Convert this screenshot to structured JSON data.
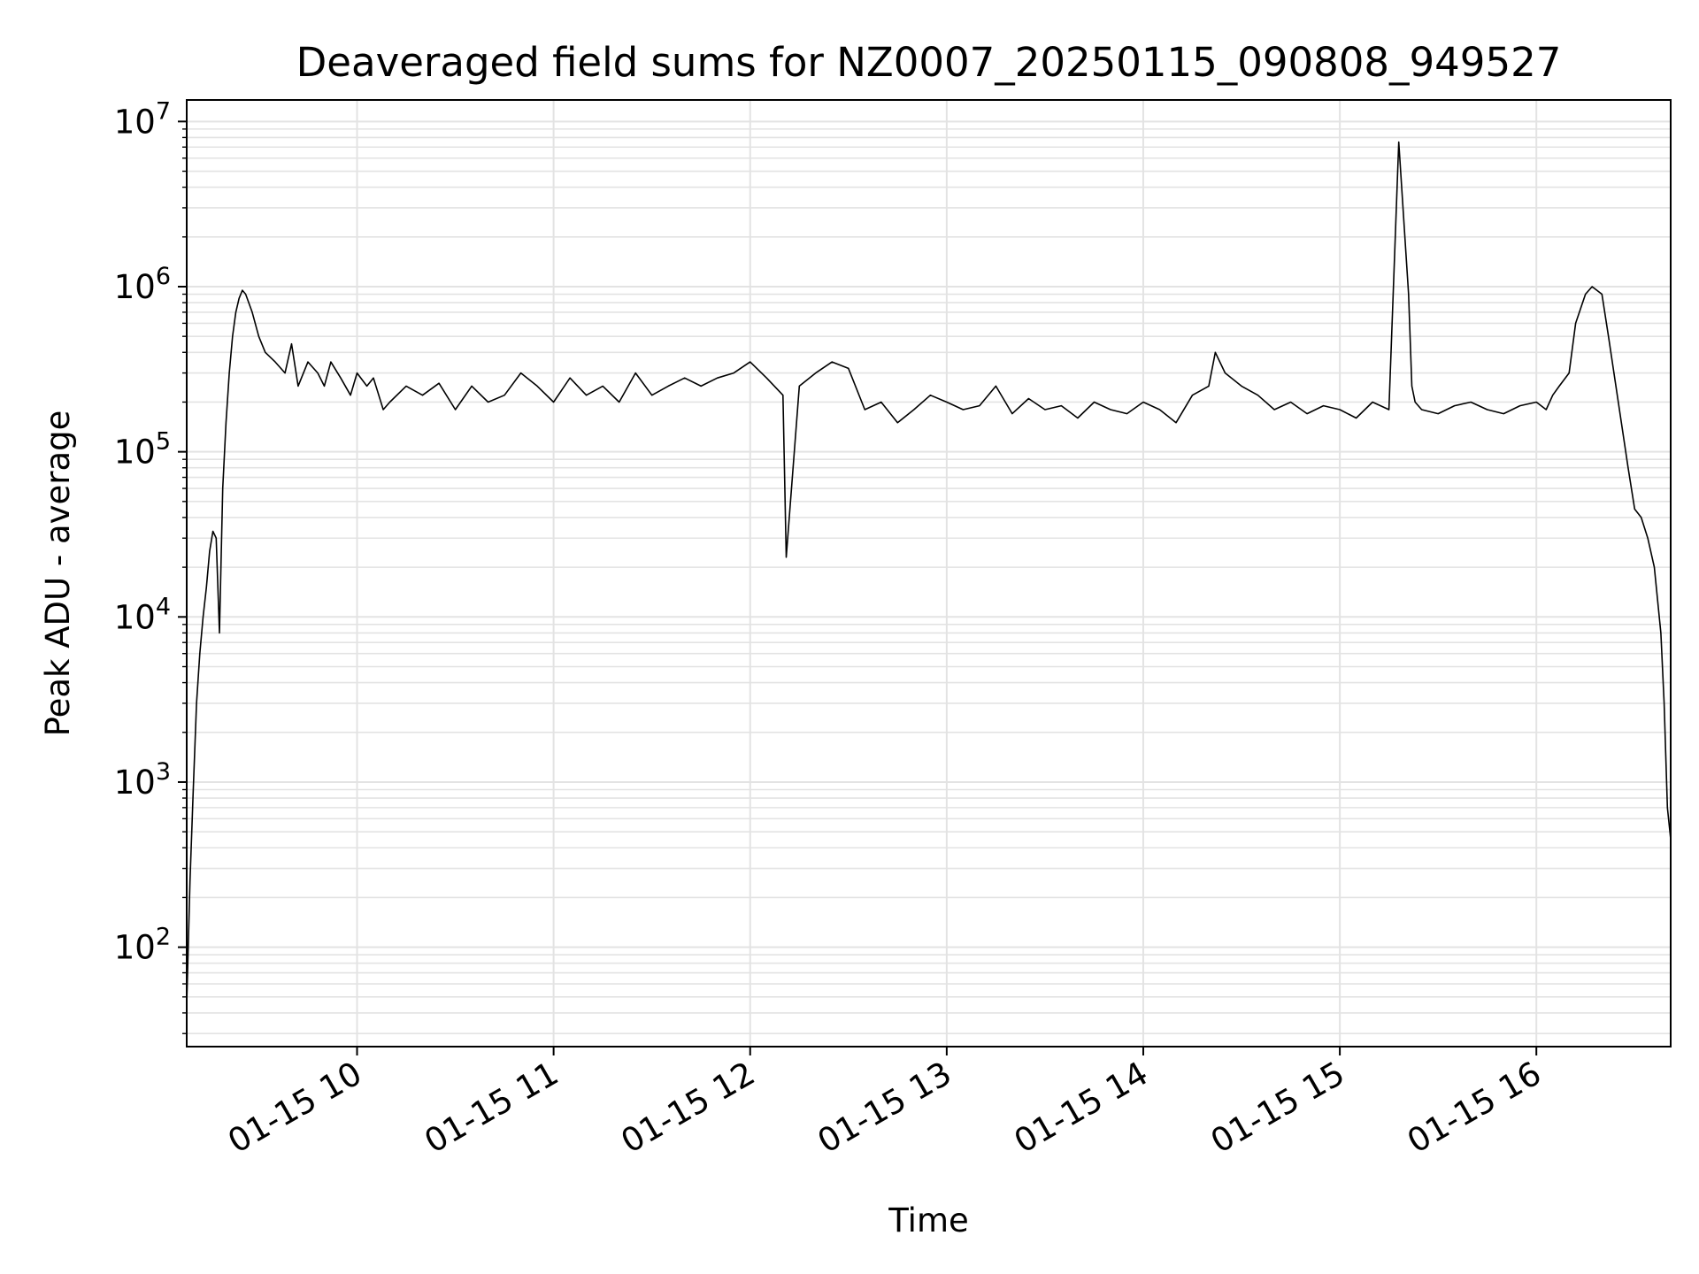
{
  "chart_data": {
    "type": "line",
    "title": "Deaveraged field sums for NZ0007_20250115_090808_949527",
    "xlabel": "Time",
    "ylabel": "Peak ADU - average",
    "y_scale": "log",
    "ylim": [
      25,
      13500000
    ],
    "xlim": [
      "2025-01-15 09:08",
      "2025-01-15 16:41"
    ],
    "x_tick_values": [
      "2025-01-15 10:00",
      "2025-01-15 11:00",
      "2025-01-15 12:00",
      "2025-01-15 13:00",
      "2025-01-15 14:00",
      "2025-01-15 15:00",
      "2025-01-15 16:00"
    ],
    "x_tick_labels": [
      "01-15 10",
      "01-15 11",
      "01-15 12",
      "01-15 13",
      "01-15 14",
      "01-15 15",
      "01-15 16"
    ],
    "y_tick_values": [
      100,
      1000,
      10000,
      100000,
      1000000,
      10000000
    ],
    "y_tick_exponents": [
      "2",
      "3",
      "4",
      "5",
      "6",
      "7"
    ],
    "y_tick_base": "10",
    "grid": true,
    "line_color": "#000000",
    "series": [
      {
        "x": [
          "09:08",
          "09:09",
          "09:10",
          "09:11",
          "09:12",
          "09:13",
          "09:14",
          "09:15",
          "09:16",
          "09:17",
          "09:18",
          "09:19",
          "09:20",
          "09:21",
          "09:22",
          "09:23",
          "09:24",
          "09:25",
          "09:26",
          "09:28",
          "09:30",
          "09:32",
          "09:35",
          "09:38",
          "09:40",
          "09:42",
          "09:45",
          "09:48",
          "09:50",
          "09:52",
          "09:55",
          "09:58",
          "10:00",
          "10:03",
          "10:05",
          "10:08",
          "10:10",
          "10:15",
          "10:20",
          "10:25",
          "10:30",
          "10:35",
          "10:40",
          "10:45",
          "10:50",
          "10:55",
          "11:00",
          "11:05",
          "11:10",
          "11:15",
          "11:20",
          "11:25",
          "11:30",
          "11:35",
          "11:40",
          "11:45",
          "11:50",
          "11:55",
          "12:00",
          "12:05",
          "12:10",
          "12:11",
          "12:15",
          "12:20",
          "12:25",
          "12:30",
          "12:35",
          "12:40",
          "12:45",
          "12:50",
          "12:55",
          "13:00",
          "13:05",
          "13:10",
          "13:15",
          "13:20",
          "13:25",
          "13:30",
          "13:35",
          "13:40",
          "13:45",
          "13:50",
          "13:55",
          "14:00",
          "14:05",
          "14:10",
          "14:15",
          "14:20",
          "14:22",
          "14:25",
          "14:30",
          "14:35",
          "14:40",
          "14:45",
          "14:50",
          "14:55",
          "15:00",
          "15:05",
          "15:10",
          "15:15",
          "15:18",
          "15:21",
          "15:22",
          "15:23",
          "15:25",
          "15:30",
          "15:35",
          "15:40",
          "15:45",
          "15:50",
          "15:55",
          "16:00",
          "16:03",
          "16:05",
          "16:07",
          "16:10",
          "16:12",
          "16:15",
          "16:17",
          "16:20",
          "16:22",
          "16:25",
          "16:28",
          "16:30",
          "16:32",
          "16:34",
          "16:36",
          "16:38",
          "16:39",
          "16:40",
          "16:41"
        ],
        "y": [
          45,
          250,
          900,
          3000,
          6000,
          10000,
          15000,
          25000,
          33000,
          30000,
          8000,
          60000,
          150000,
          300000,
          500000,
          700000,
          850000,
          950000,
          900000,
          700000,
          500000,
          400000,
          350000,
          300000,
          450000,
          250000,
          350000,
          300000,
          250000,
          350000,
          280000,
          220000,
          300000,
          250000,
          280000,
          180000,
          200000,
          250000,
          220000,
          260000,
          180000,
          250000,
          200000,
          220000,
          300000,
          250000,
          200000,
          280000,
          220000,
          250000,
          200000,
          300000,
          220000,
          250000,
          280000,
          250000,
          280000,
          300000,
          350000,
          280000,
          220000,
          23000,
          250000,
          300000,
          350000,
          320000,
          180000,
          200000,
          150000,
          180000,
          220000,
          200000,
          180000,
          190000,
          250000,
          170000,
          210000,
          180000,
          190000,
          160000,
          200000,
          180000,
          170000,
          200000,
          180000,
          150000,
          220000,
          250000,
          400000,
          300000,
          250000,
          220000,
          180000,
          200000,
          170000,
          190000,
          180000,
          160000,
          200000,
          180000,
          7500000,
          900000,
          250000,
          200000,
          180000,
          170000,
          190000,
          200000,
          180000,
          170000,
          190000,
          200000,
          180000,
          220000,
          250000,
          300000,
          600000,
          900000,
          1000000,
          900000,
          500000,
          200000,
          80000,
          45000,
          40000,
          30000,
          20000,
          8000,
          3000,
          700,
          450
        ]
      }
    ]
  }
}
